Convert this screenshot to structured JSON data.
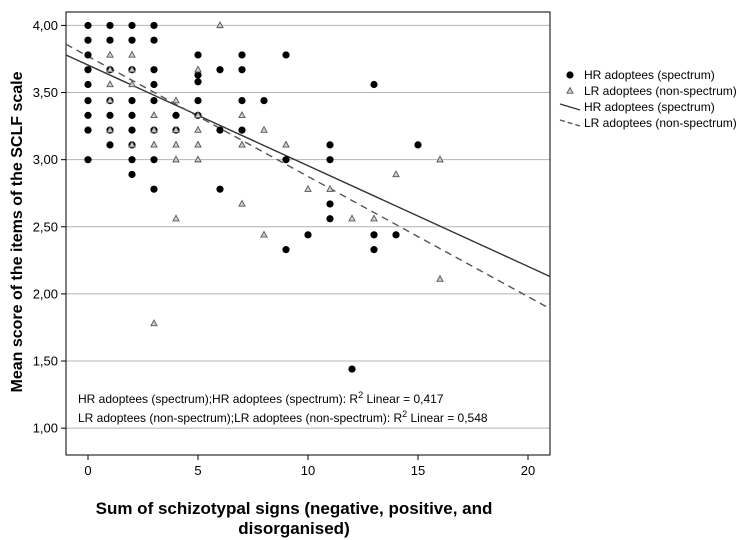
{
  "chart_data": {
    "type": "scatter",
    "xlabel_lines": [
      "Sum of schizotypal signs (negative, positive, and",
      "disorganised)"
    ],
    "ylabel": "Mean score of the items of the SCLF scale",
    "xlim": [
      -1,
      21
    ],
    "ylim": [
      0.8,
      4.1
    ],
    "x_ticks": [
      0,
      5,
      10,
      15,
      20
    ],
    "x_tick_labels": [
      "0",
      "5",
      "10",
      "15",
      "20"
    ],
    "y_ticks": [
      1.0,
      1.5,
      2.0,
      2.5,
      3.0,
      3.5,
      4.0
    ],
    "y_tick_labels": [
      "1,00",
      "1,50",
      "2,00",
      "2,50",
      "3,00",
      "3,50",
      "4,00"
    ],
    "grid": "horizontal",
    "legend_position": "right",
    "legend": [
      {
        "label": "HR adoptees (spectrum)",
        "kind": "dot"
      },
      {
        "label": "LR adoptees (non-spectrum)",
        "kind": "triangle"
      },
      {
        "label": "HR adoptees (spectrum)",
        "kind": "solid-line"
      },
      {
        "label": "LR adoptees (non-spectrum)",
        "kind": "dashed-line"
      }
    ],
    "annotations": [
      {
        "text": "HR adoptees (spectrum);HR adoptees (spectrum): R",
        "sup": "2",
        "after": " Linear = 0,417"
      },
      {
        "text": "LR adoptees (non-spectrum);LR adoptees (non-spectrum): R",
        "sup": "2",
        "after": " Linear = 0,548"
      }
    ],
    "series": [
      {
        "name": "HR adoptees (spectrum)",
        "marker": "dot",
        "color": "#000000",
        "points": [
          [
            0,
            4.0
          ],
          [
            0,
            3.89
          ],
          [
            0,
            3.78
          ],
          [
            0,
            3.67
          ],
          [
            0,
            3.56
          ],
          [
            0,
            3.44
          ],
          [
            0,
            3.33
          ],
          [
            0,
            3.22
          ],
          [
            0,
            3.0
          ],
          [
            1,
            4.0
          ],
          [
            1,
            3.89
          ],
          [
            1,
            3.67
          ],
          [
            1,
            3.44
          ],
          [
            1,
            3.33
          ],
          [
            1,
            3.22
          ],
          [
            1,
            3.11
          ],
          [
            2,
            4.0
          ],
          [
            2,
            3.89
          ],
          [
            2,
            3.67
          ],
          [
            2,
            3.44
          ],
          [
            2,
            3.33
          ],
          [
            2,
            3.22
          ],
          [
            2,
            3.11
          ],
          [
            2,
            3.0
          ],
          [
            2,
            2.89
          ],
          [
            3,
            4.0
          ],
          [
            3,
            3.89
          ],
          [
            3,
            3.67
          ],
          [
            3,
            3.56
          ],
          [
            3,
            3.44
          ],
          [
            3,
            3.22
          ],
          [
            3,
            3.0
          ],
          [
            3,
            2.78
          ],
          [
            4,
            3.33
          ],
          [
            4,
            3.22
          ],
          [
            5,
            3.78
          ],
          [
            5,
            3.63
          ],
          [
            5,
            3.58
          ],
          [
            5,
            3.44
          ],
          [
            5,
            3.33
          ],
          [
            6,
            3.67
          ],
          [
            6,
            3.22
          ],
          [
            6,
            2.78
          ],
          [
            7,
            3.78
          ],
          [
            7,
            3.67
          ],
          [
            7,
            3.44
          ],
          [
            7,
            3.22
          ],
          [
            8,
            3.44
          ],
          [
            9,
            3.78
          ],
          [
            9,
            3.0
          ],
          [
            9,
            2.33
          ],
          [
            10,
            2.44
          ],
          [
            11,
            3.11
          ],
          [
            11,
            3.0
          ],
          [
            11,
            2.67
          ],
          [
            11,
            2.56
          ],
          [
            12,
            1.44
          ],
          [
            13,
            3.56
          ],
          [
            13,
            2.44
          ],
          [
            13,
            2.33
          ],
          [
            14,
            2.44
          ],
          [
            15,
            3.11
          ]
        ],
        "fit": {
          "style": "solid",
          "x": [
            -1,
            21
          ],
          "y": [
            3.78,
            2.13
          ]
        }
      },
      {
        "name": "LR adoptees (non-spectrum)",
        "marker": "triangle",
        "color": "#888888",
        "points": [
          [
            1,
            3.78
          ],
          [
            1,
            3.67
          ],
          [
            1,
            3.56
          ],
          [
            1,
            3.44
          ],
          [
            1,
            3.22
          ],
          [
            2,
            3.78
          ],
          [
            2,
            3.67
          ],
          [
            2,
            3.56
          ],
          [
            2,
            3.11
          ],
          [
            3,
            3.33
          ],
          [
            3,
            3.22
          ],
          [
            3,
            3.11
          ],
          [
            3,
            1.78
          ],
          [
            4,
            3.44
          ],
          [
            4,
            3.22
          ],
          [
            4,
            3.11
          ],
          [
            4,
            3.0
          ],
          [
            4,
            2.56
          ],
          [
            5,
            3.67
          ],
          [
            5,
            3.33
          ],
          [
            5,
            3.22
          ],
          [
            5,
            3.11
          ],
          [
            5,
            3.0
          ],
          [
            6,
            4.0
          ],
          [
            7,
            3.33
          ],
          [
            7,
            3.11
          ],
          [
            7,
            2.67
          ],
          [
            8,
            3.22
          ],
          [
            8,
            2.44
          ],
          [
            9,
            3.11
          ],
          [
            10,
            2.78
          ],
          [
            11,
            2.78
          ],
          [
            12,
            2.56
          ],
          [
            13,
            2.56
          ],
          [
            14,
            2.89
          ],
          [
            16,
            3.0
          ],
          [
            16,
            2.11
          ]
        ],
        "fit": {
          "style": "dashed",
          "x": [
            -1,
            21
          ],
          "y": [
            3.86,
            1.89
          ]
        }
      }
    ]
  }
}
